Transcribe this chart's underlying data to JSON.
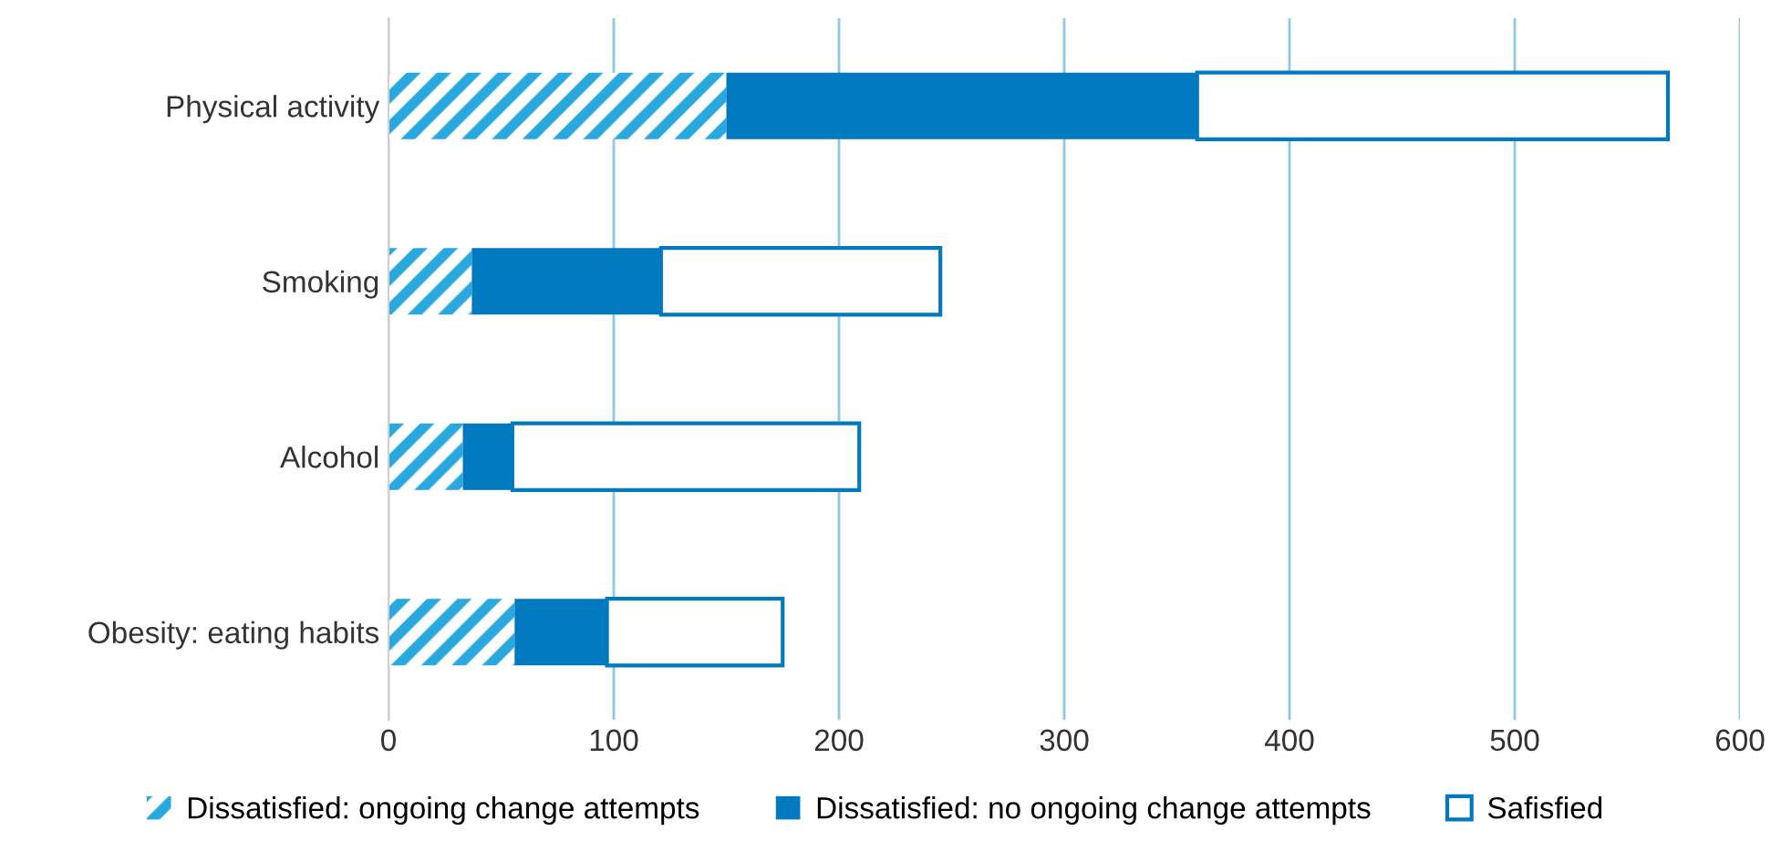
{
  "chart_data": {
    "type": "bar",
    "orientation": "horizontal",
    "stacked": true,
    "categories": [
      "Physical activity",
      "Smoking",
      "Alcohol",
      "Obesity: eating habits"
    ],
    "series": [
      {
        "name": "Dissatisfied: ongoing change attempts",
        "color": "#29a8df",
        "values": [
          150,
          37,
          33,
          56
        ]
      },
      {
        "name": "Dissatisfied: no ongoing change attempts",
        "color": "#0079bf",
        "values": [
          209,
          84,
          22,
          41
        ]
      },
      {
        "name": "Safisfied",
        "color": "#ffffff",
        "values": [
          209,
          124,
          154,
          78
        ]
      }
    ],
    "xlim": [
      0,
      600
    ],
    "xticks": [
      0,
      100,
      200,
      300,
      400,
      500,
      600
    ],
    "grid": "x",
    "legend": "bottom"
  }
}
